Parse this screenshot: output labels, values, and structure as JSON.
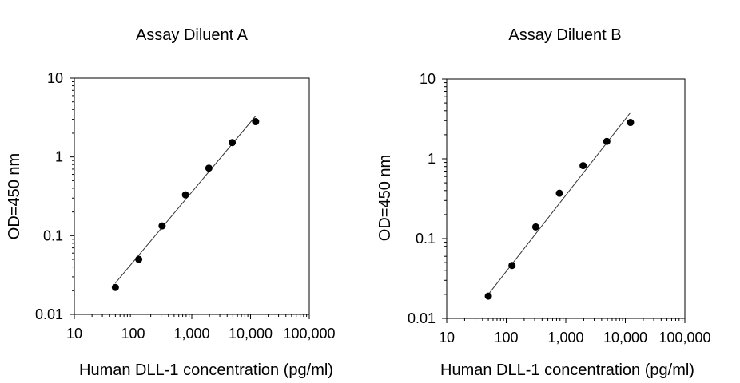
{
  "chart_data": [
    {
      "type": "scatter",
      "title": "Assay Diluent A",
      "xlabel": "Human DLL-1 concentration (pg/ml)",
      "ylabel": "OD=450 nm",
      "xscale": "log",
      "yscale": "log",
      "xlim": [
        10,
        100000
      ],
      "ylim": [
        0.01,
        10
      ],
      "xticks": [
        "10",
        "100",
        "1,000",
        "10,000",
        "100,000"
      ],
      "yticks": [
        "0.01",
        "0.1",
        "1",
        "10"
      ],
      "grid": false,
      "points": {
        "x": [
          50,
          125,
          312.5,
          781,
          1953,
          4883,
          12207
        ],
        "y": [
          0.022,
          0.05,
          0.133,
          0.33,
          0.72,
          1.52,
          2.8
        ]
      },
      "fit_line": {
        "x": [
          50,
          12207
        ],
        "y": [
          0.025,
          3.3
        ]
      }
    },
    {
      "type": "scatter",
      "title": "Assay Diluent B",
      "xlabel": "Human DLL-1 concentration (pg/ml)",
      "ylabel": "OD=450 nm",
      "xscale": "log",
      "yscale": "log",
      "xlim": [
        10,
        100000
      ],
      "ylim": [
        0.01,
        10
      ],
      "xticks": [
        "10",
        "100",
        "1,000",
        "10,000",
        "100,000"
      ],
      "yticks": [
        "0.01",
        "0.1",
        "1",
        "10"
      ],
      "grid": false,
      "points": {
        "x": [
          50,
          125,
          312.5,
          781,
          1953,
          4883,
          12207
        ],
        "y": [
          0.019,
          0.046,
          0.14,
          0.37,
          0.82,
          1.65,
          2.85
        ]
      },
      "fit_line": {
        "x": [
          50,
          12207
        ],
        "y": [
          0.02,
          3.8
        ]
      }
    }
  ]
}
